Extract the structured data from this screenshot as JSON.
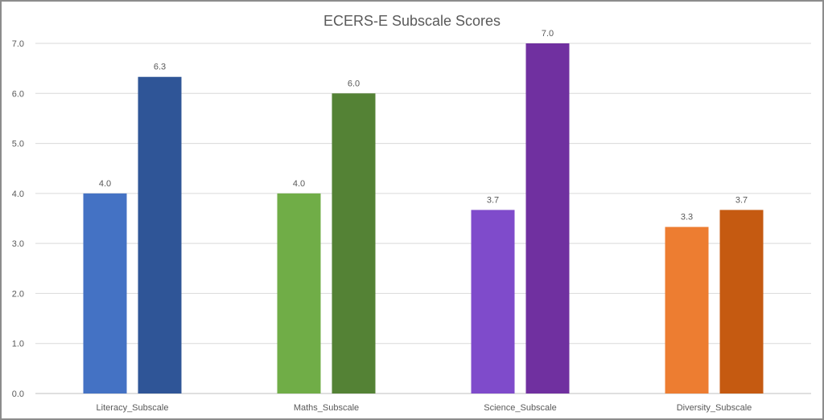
{
  "chart_data": {
    "type": "bar",
    "title": "ECERS-E Subscale Scores",
    "xlabel": "",
    "ylabel": "",
    "categories": [
      "Literacy_Subscale",
      "Maths_Subscale",
      "Science_Subscale",
      "Diversity_Subscale"
    ],
    "bars": [
      [
        {
          "value": 4.0,
          "label": "4.0",
          "color": "#4472C4"
        },
        {
          "value": 6.33,
          "label": "6.3",
          "color": "#2F5597"
        }
      ],
      [
        {
          "value": 4.0,
          "label": "4.0",
          "color": "#70AD47"
        },
        {
          "value": 6.0,
          "label": "6.0",
          "color": "#548235"
        }
      ],
      [
        {
          "value": 3.67,
          "label": "3.7",
          "color": "#7F4BCB"
        },
        {
          "value": 7.0,
          "label": "7.0",
          "color": "#7030A0"
        }
      ],
      [
        {
          "value": 3.33,
          "label": "3.3",
          "color": "#ED7D31"
        },
        {
          "value": 3.67,
          "label": "3.7",
          "color": "#C55A11"
        }
      ]
    ],
    "ylim": [
      0,
      7
    ],
    "yticks": [
      "0.0",
      "1.0",
      "2.0",
      "3.0",
      "4.0",
      "5.0",
      "6.0",
      "7.0"
    ],
    "grid": true,
    "legend": "none"
  }
}
